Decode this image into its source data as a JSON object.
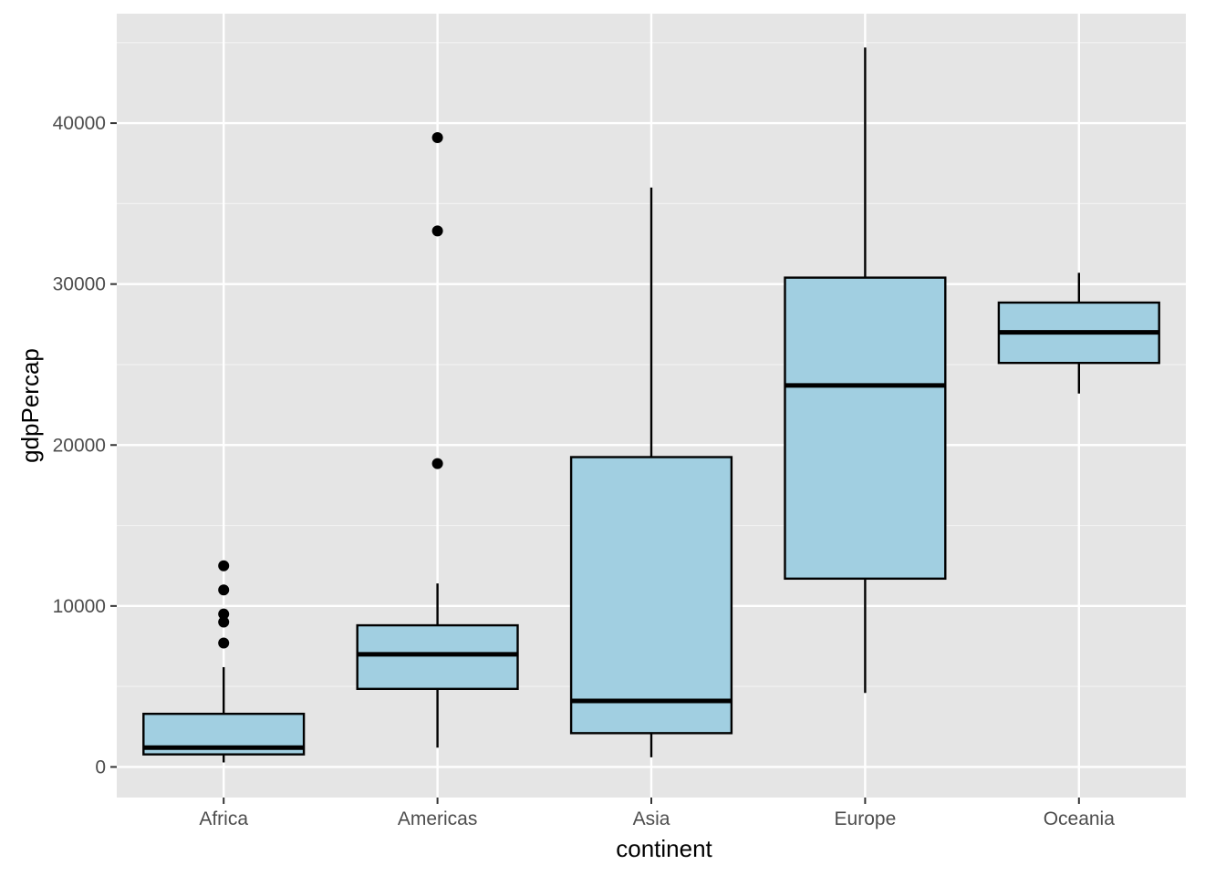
{
  "chart_data": {
    "type": "boxplot",
    "title": "",
    "xlabel": "continent",
    "ylabel": "gdpPercap",
    "ylim": [
      -1900,
      46800
    ],
    "y_ticks": [
      0,
      10000,
      20000,
      30000,
      40000
    ],
    "y_tick_labels": [
      "0",
      "10000",
      "20000",
      "30000",
      "40000"
    ],
    "grid": true,
    "box_fill": "#a1cfe1",
    "panel_background": "#e5e5e5",
    "categories": [
      "Africa",
      "Americas",
      "Asia",
      "Europe",
      "Oceania"
    ],
    "boxes": [
      {
        "category": "Africa",
        "whisker_low": 280,
        "q1": 780,
        "median": 1200,
        "q3": 3300,
        "whisker_high": 6200,
        "outliers": [
          7700,
          9000,
          9500,
          11000,
          12500
        ]
      },
      {
        "category": "Americas",
        "whisker_low": 1200,
        "q1": 4850,
        "median": 7000,
        "q3": 8800,
        "whisker_high": 11400,
        "outliers": [
          18850,
          33300,
          39100
        ]
      },
      {
        "category": "Asia",
        "whisker_low": 600,
        "q1": 2100,
        "median": 4100,
        "q3": 19250,
        "whisker_high": 36000,
        "outliers": []
      },
      {
        "category": "Europe",
        "whisker_low": 4600,
        "q1": 11700,
        "median": 23700,
        "q3": 30400,
        "whisker_high": 44700,
        "outliers": []
      },
      {
        "category": "Oceania",
        "whisker_low": 23200,
        "q1": 25100,
        "median": 27000,
        "q3": 28850,
        "whisker_high": 30700,
        "outliers": []
      }
    ]
  }
}
